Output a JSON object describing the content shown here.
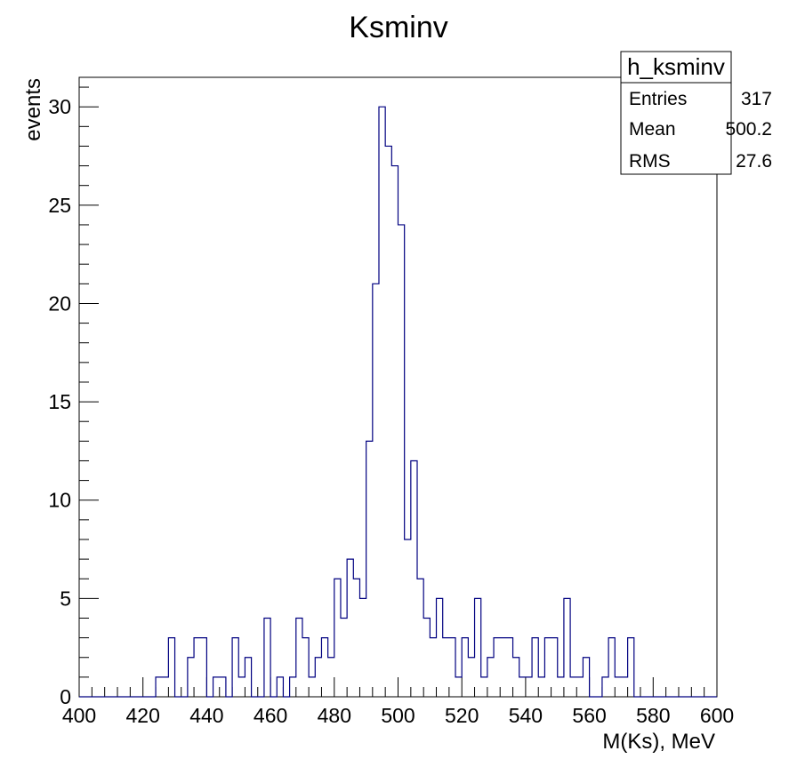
{
  "chart_data": {
    "type": "bar",
    "title": "Ksminv",
    "xlabel": "M(Ks), MeV",
    "ylabel": "events",
    "xlim": [
      400,
      600
    ],
    "ylim": [
      0,
      31.5
    ],
    "bin_width": 2,
    "x_ticks": [
      "400",
      "420",
      "440",
      "460",
      "480",
      "500",
      "520",
      "540",
      "560",
      "580",
      "600"
    ],
    "y_ticks": [
      "0",
      "5",
      "10",
      "15",
      "20",
      "25",
      "30"
    ],
    "line_color": "#000080",
    "bin_low_edges": [
      400,
      402,
      404,
      406,
      408,
      410,
      412,
      414,
      416,
      418,
      420,
      422,
      424,
      426,
      428,
      430,
      432,
      434,
      436,
      438,
      440,
      442,
      444,
      446,
      448,
      450,
      452,
      454,
      456,
      458,
      460,
      462,
      464,
      466,
      468,
      470,
      472,
      474,
      476,
      478,
      480,
      482,
      484,
      486,
      488,
      490,
      492,
      494,
      496,
      498,
      500,
      502,
      504,
      506,
      508,
      510,
      512,
      514,
      516,
      518,
      520,
      522,
      524,
      526,
      528,
      530,
      532,
      534,
      536,
      538,
      540,
      542,
      544,
      546,
      548,
      550,
      552,
      554,
      556,
      558,
      560,
      562,
      564,
      566,
      568,
      570,
      572,
      574,
      576,
      578,
      580,
      582,
      584,
      586,
      588,
      590,
      592,
      594,
      596,
      598
    ],
    "values": [
      0,
      0,
      0,
      0,
      0,
      0,
      0,
      0,
      0,
      0,
      0,
      0,
      1,
      1,
      3,
      0,
      0,
      2,
      3,
      3,
      0,
      1,
      1,
      0,
      3,
      1,
      2,
      0,
      0,
      4,
      0,
      1,
      0,
      1,
      4,
      3,
      1,
      2,
      3,
      2,
      6,
      4,
      7,
      6,
      5,
      13,
      21,
      30,
      28,
      27,
      24,
      8,
      12,
      6,
      4,
      3,
      5,
      3,
      3,
      1,
      3,
      2,
      5,
      1,
      2,
      3,
      3,
      3,
      2,
      1,
      1,
      3,
      1,
      3,
      3,
      1,
      5,
      1,
      1,
      2,
      0,
      0,
      1,
      3,
      1,
      1,
      3,
      0,
      0,
      0,
      0,
      0,
      0,
      0,
      0,
      0,
      0,
      0,
      0,
      0
    ],
    "stats": {
      "name": "h_ksminv",
      "rows": [
        {
          "label": "Entries",
          "value": "317"
        },
        {
          "label": "Mean",
          "value": "500.2"
        },
        {
          "label": "RMS",
          "value": "27.6"
        }
      ]
    }
  }
}
